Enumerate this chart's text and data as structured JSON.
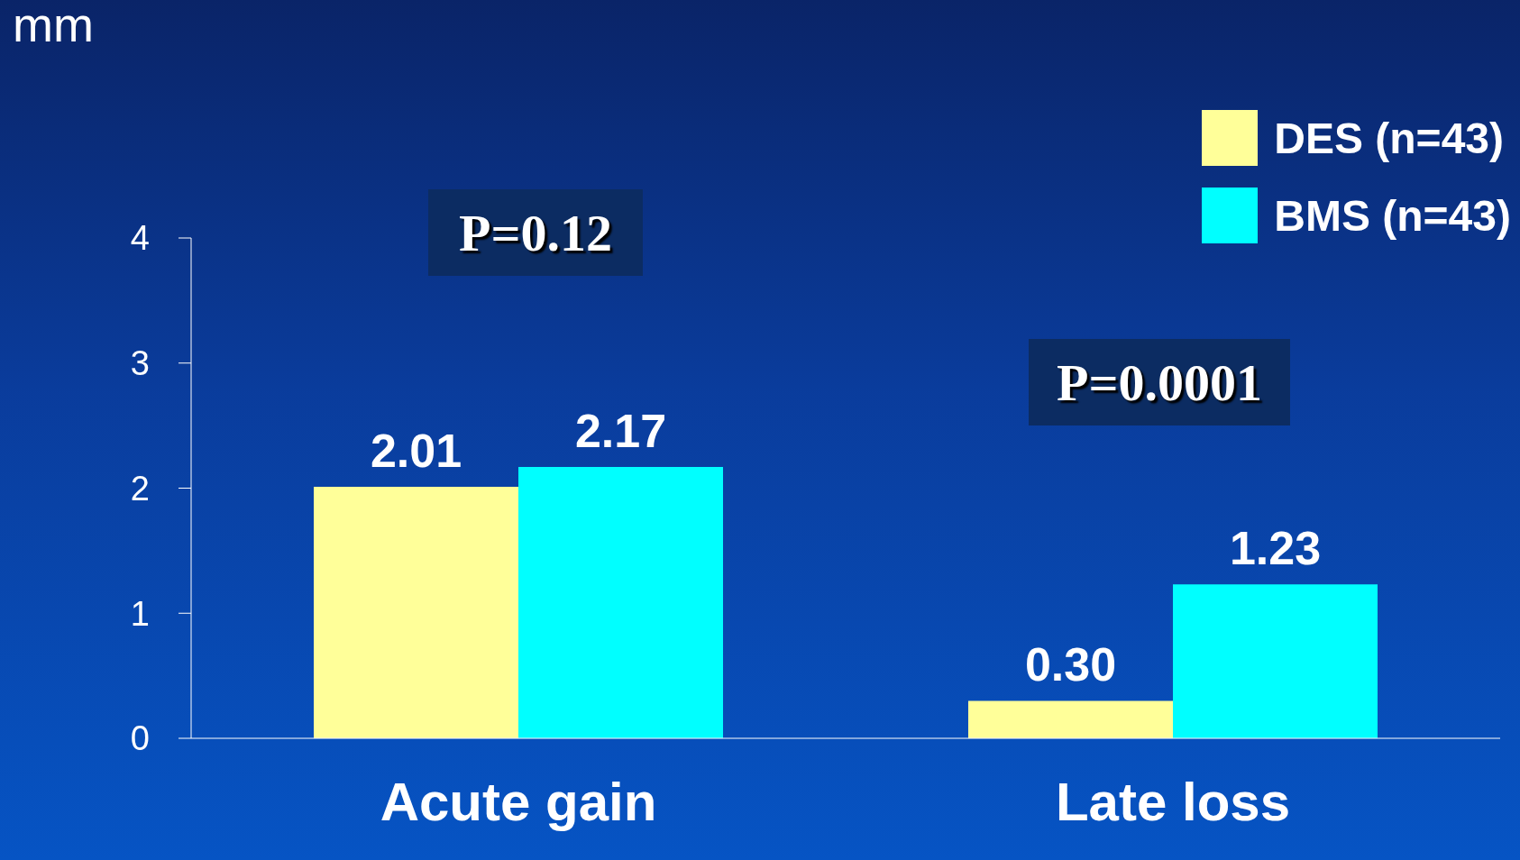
{
  "chart_data": {
    "type": "bar",
    "ylabel": "mm",
    "categories": [
      "Acute gain",
      "Late loss"
    ],
    "series": [
      {
        "name": "DES (n=43)",
        "color": "#ffff99",
        "values": [
          2.01,
          0.3
        ],
        "value_labels": [
          "2.01",
          "0.30"
        ]
      },
      {
        "name": "BMS (n=43)",
        "color": "#00ffff",
        "values": [
          2.17,
          1.23
        ],
        "value_labels": [
          "2.17",
          "1.23"
        ]
      }
    ],
    "ylim": [
      0,
      4
    ],
    "yticks": [
      0,
      1,
      2,
      3,
      4
    ],
    "grid": false,
    "legend": "top right",
    "annotations": [
      "P=0.12",
      "P=0.0001"
    ]
  }
}
